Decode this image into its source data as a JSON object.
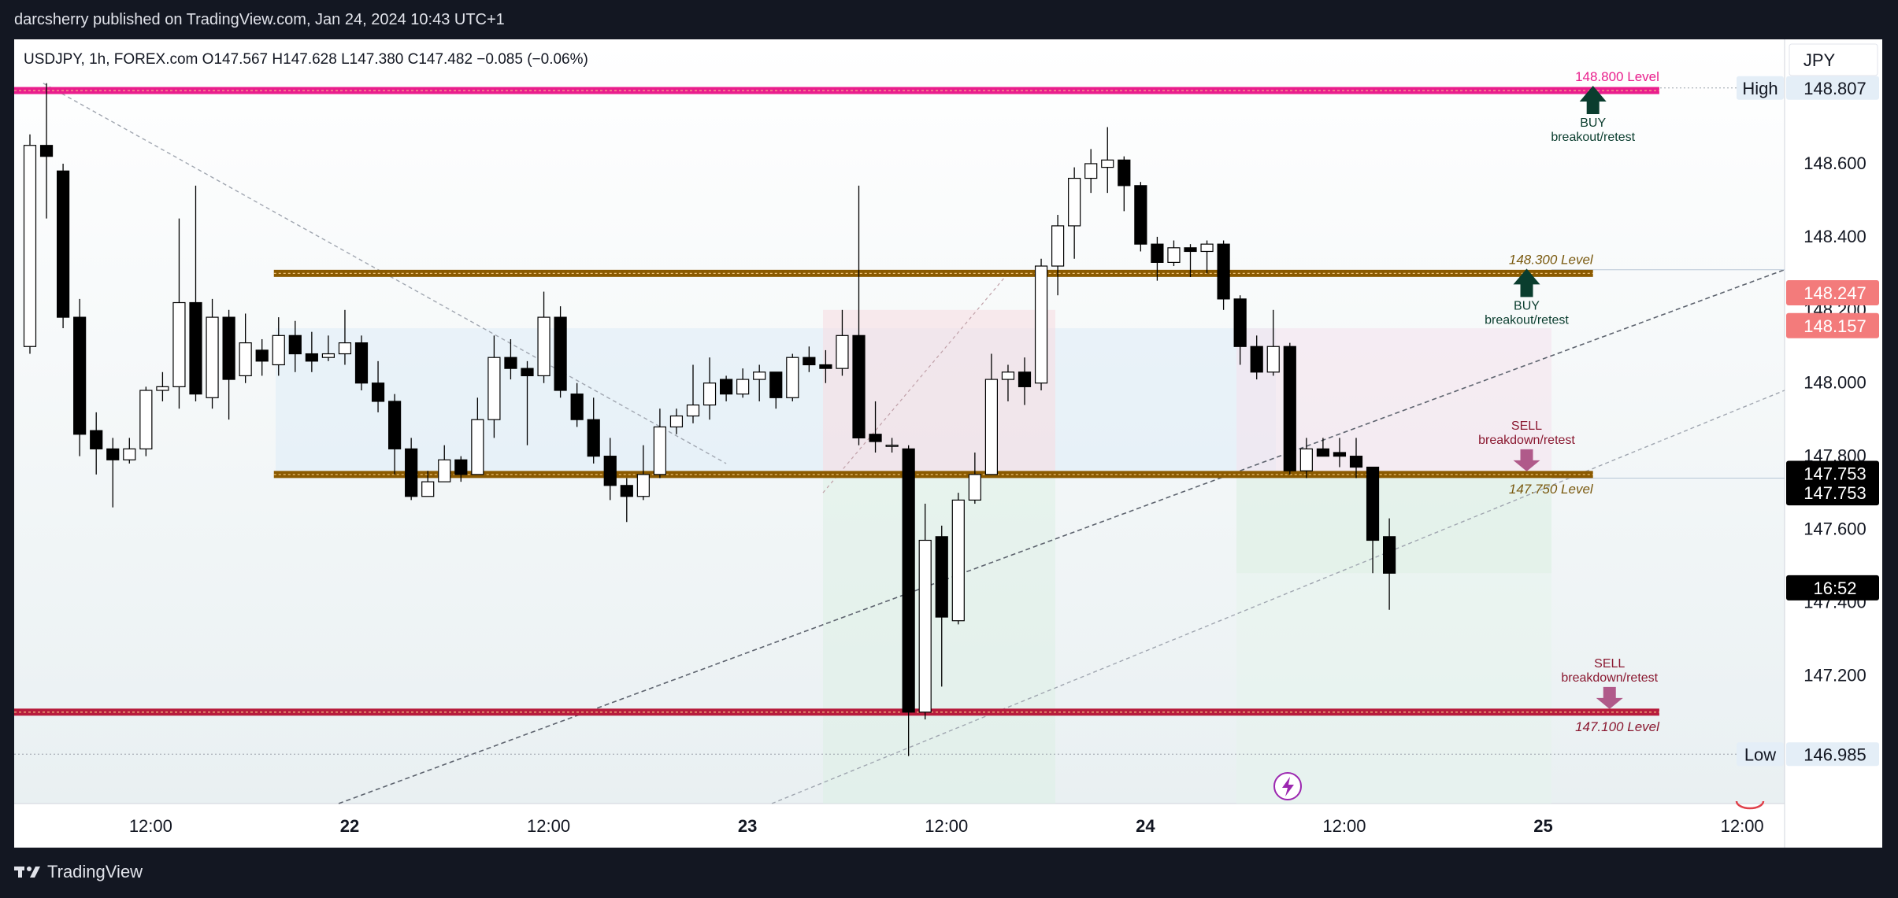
{
  "header": {
    "published": "darcsherry published on TradingView.com, Jan 24, 2024 10:43 UTC+1",
    "legend": "USDJPY, 1h, FOREX.com  O147.567  H147.628  L147.380  C147.482  −0.085 (−0.06%)"
  },
  "footer": {
    "brand": "TradingView"
  },
  "colors": {
    "up_candle": "#ffffff",
    "down_candle": "#000000",
    "level_magenta": "#e91e8c",
    "level_brown": "#8b5a00",
    "level_red": "#b71c3c",
    "buy_arrow": "#0a3d2e",
    "sell_arrow": "#b05a8a"
  },
  "chart_data": {
    "type": "candlestick",
    "symbol": "USDJPY",
    "interval": "1h",
    "currency": "JPY",
    "ylim": [
      146.85,
      148.94
    ],
    "y_ticks": [
      "148.807",
      "148.600",
      "148.400",
      "148.200",
      "148.000",
      "147.800",
      "147.600",
      "147.400",
      "147.200",
      "146.985"
    ],
    "x_ticks": [
      {
        "label": "12:00",
        "i": 7,
        "bold": false
      },
      {
        "label": "22",
        "i": 19,
        "bold": true
      },
      {
        "label": "12:00",
        "i": 31,
        "bold": false
      },
      {
        "label": "23",
        "i": 43,
        "bold": true
      },
      {
        "label": "12:00",
        "i": 55,
        "bold": false
      },
      {
        "label": "24",
        "i": 67,
        "bold": true
      },
      {
        "label": "12:00",
        "i": 79,
        "bold": false
      },
      {
        "label": "25",
        "i": 91,
        "bold": true
      },
      {
        "label": "12:00",
        "i": 103,
        "bold": false
      }
    ],
    "candles": [
      [
        148.1,
        148.65,
        148.68,
        148.08
      ],
      [
        148.65,
        148.62,
        148.82,
        148.45
      ],
      [
        148.58,
        148.18,
        148.6,
        148.15
      ],
      [
        148.18,
        147.86,
        148.23,
        147.8
      ],
      [
        147.87,
        147.82,
        147.92,
        147.75
      ],
      [
        147.82,
        147.79,
        147.85,
        147.66
      ],
      [
        147.79,
        147.82,
        147.85,
        147.78
      ],
      [
        147.82,
        147.98,
        147.99,
        147.8
      ],
      [
        147.98,
        147.99,
        148.03,
        147.95
      ],
      [
        147.99,
        148.22,
        148.45,
        147.93
      ],
      [
        148.22,
        147.97,
        148.54,
        147.95
      ],
      [
        147.96,
        148.18,
        148.23,
        147.93
      ],
      [
        148.18,
        148.01,
        148.2,
        147.9
      ],
      [
        148.02,
        148.11,
        148.19,
        148.0
      ],
      [
        148.09,
        148.06,
        148.12,
        148.02
      ],
      [
        148.05,
        148.13,
        148.18,
        148.02
      ],
      [
        148.13,
        148.08,
        148.17,
        148.03
      ],
      [
        148.08,
        148.06,
        148.14,
        148.03
      ],
      [
        148.07,
        148.08,
        148.13,
        148.06
      ],
      [
        148.08,
        148.11,
        148.2,
        148.05
      ],
      [
        148.11,
        148.0,
        148.13,
        147.98
      ],
      [
        148.0,
        147.95,
        148.06,
        147.92
      ],
      [
        147.95,
        147.82,
        147.97,
        147.75
      ],
      [
        147.82,
        147.69,
        147.85,
        147.68
      ],
      [
        147.69,
        147.73,
        147.76,
        147.69
      ],
      [
        147.73,
        147.79,
        147.83,
        147.73
      ],
      [
        147.79,
        147.75,
        147.8,
        147.73
      ],
      [
        147.75,
        147.9,
        147.96,
        147.75
      ],
      [
        147.9,
        148.07,
        148.13,
        147.85
      ],
      [
        148.07,
        148.04,
        148.12,
        148.01
      ],
      [
        148.04,
        148.02,
        148.06,
        147.83
      ],
      [
        148.02,
        148.18,
        148.25,
        148.0
      ],
      [
        148.18,
        147.98,
        148.21,
        147.96
      ],
      [
        147.97,
        147.9,
        148.0,
        147.88
      ],
      [
        147.9,
        147.8,
        147.96,
        147.78
      ],
      [
        147.8,
        147.72,
        147.85,
        147.68
      ],
      [
        147.72,
        147.69,
        147.74,
        147.62
      ],
      [
        147.69,
        147.75,
        147.83,
        147.68
      ],
      [
        147.75,
        147.88,
        147.93,
        147.74
      ],
      [
        147.88,
        147.91,
        147.93,
        147.86
      ],
      [
        147.91,
        147.94,
        148.05,
        147.89
      ],
      [
        147.94,
        148.0,
        148.07,
        147.9
      ],
      [
        148.01,
        147.97,
        148.02,
        147.95
      ],
      [
        147.97,
        148.01,
        148.04,
        147.96
      ],
      [
        148.01,
        148.03,
        148.05,
        147.95
      ],
      [
        148.03,
        147.96,
        148.03,
        147.93
      ],
      [
        147.96,
        148.07,
        148.08,
        147.95
      ],
      [
        148.07,
        148.05,
        148.1,
        148.03
      ],
      [
        148.05,
        148.04,
        148.09,
        148.0
      ],
      [
        148.04,
        148.13,
        148.2,
        148.02
      ],
      [
        148.13,
        147.85,
        148.54,
        147.83
      ],
      [
        147.86,
        147.84,
        147.95,
        147.81
      ],
      [
        147.83,
        147.83,
        147.85,
        147.81
      ],
      [
        147.82,
        147.1,
        147.83,
        146.98
      ],
      [
        147.1,
        147.57,
        147.67,
        147.08
      ],
      [
        147.58,
        147.36,
        147.61,
        147.17
      ],
      [
        147.35,
        147.68,
        147.7,
        147.34
      ],
      [
        147.68,
        147.75,
        147.81,
        147.67
      ],
      [
        147.75,
        148.01,
        148.08,
        147.76
      ],
      [
        148.01,
        148.03,
        148.05,
        147.95
      ],
      [
        148.03,
        147.99,
        148.07,
        147.94
      ],
      [
        148.0,
        148.32,
        148.34,
        147.98
      ],
      [
        148.32,
        148.43,
        148.46,
        148.24
      ],
      [
        148.43,
        148.56,
        148.59,
        148.34
      ],
      [
        148.56,
        148.6,
        148.64,
        148.52
      ],
      [
        148.59,
        148.61,
        148.7,
        148.52
      ],
      [
        148.61,
        148.54,
        148.62,
        148.47
      ],
      [
        148.54,
        148.38,
        148.55,
        148.36
      ],
      [
        148.38,
        148.33,
        148.4,
        148.28
      ],
      [
        148.33,
        148.37,
        148.39,
        148.32
      ],
      [
        148.37,
        148.36,
        148.38,
        148.29
      ],
      [
        148.36,
        148.38,
        148.39,
        148.3
      ],
      [
        148.38,
        148.23,
        148.39,
        148.2
      ],
      [
        148.23,
        148.1,
        148.24,
        148.05
      ],
      [
        148.1,
        148.03,
        148.13,
        148.01
      ],
      [
        148.03,
        148.1,
        148.2,
        148.02
      ],
      [
        148.1,
        147.76,
        148.11,
        147.75
      ],
      [
        147.76,
        147.82,
        147.85,
        147.74
      ],
      [
        147.82,
        147.8,
        147.85,
        147.8
      ],
      [
        147.81,
        147.8,
        147.85,
        147.77
      ],
      [
        147.8,
        147.77,
        147.85,
        147.74
      ],
      [
        147.77,
        147.57,
        147.77,
        147.48
      ],
      [
        147.58,
        147.48,
        147.63,
        147.38
      ]
    ],
    "levels": [
      {
        "price": 148.8,
        "label": "148.800 Level",
        "x_start_i": 0,
        "x_end_i": 98,
        "color": "#e91e8c"
      },
      {
        "price": 148.3,
        "label": "148.300 Level",
        "x_start_i": 15,
        "x_end_i": 94,
        "color": "#8b5a00"
      },
      {
        "price": 147.75,
        "label": "147.750 Level",
        "x_start_i": 15,
        "x_end_i": 94,
        "color": "#8b5a00"
      },
      {
        "price": 147.1,
        "label": "147.100 Level",
        "x_start_i": 0,
        "x_end_i": 98,
        "color": "#b71c3c"
      }
    ],
    "signals": [
      {
        "type": "buy",
        "i": 94,
        "price": 148.8,
        "title": "BUY",
        "subtitle": "breakout/retest"
      },
      {
        "type": "buy",
        "i": 90,
        "price": 148.3,
        "title": "BUY",
        "subtitle": "breakout/retest"
      },
      {
        "type": "sell",
        "i": 90,
        "price": 147.75,
        "title": "SELL",
        "subtitle": "breakdown/retest"
      },
      {
        "type": "sell",
        "i": 95,
        "price": 147.1,
        "title": "SELL",
        "subtitle": "breakdown/retest"
      }
    ],
    "price_tags": [
      {
        "text": "High",
        "value": "148.807",
        "price": 148.807,
        "style": "hl"
      },
      {
        "value": "148.247",
        "price": 148.247,
        "style": "red"
      },
      {
        "value": "148.157",
        "price": 148.157,
        "style": "red"
      },
      {
        "value": "147.753",
        "price": 147.753,
        "style": "black"
      },
      {
        "value": "147.753",
        "price": 147.7,
        "style": "black"
      },
      {
        "value": "16:52",
        "price": 147.44,
        "style": "black"
      },
      {
        "text": "Low",
        "value": "146.985",
        "price": 146.985,
        "style": "hl"
      }
    ]
  }
}
